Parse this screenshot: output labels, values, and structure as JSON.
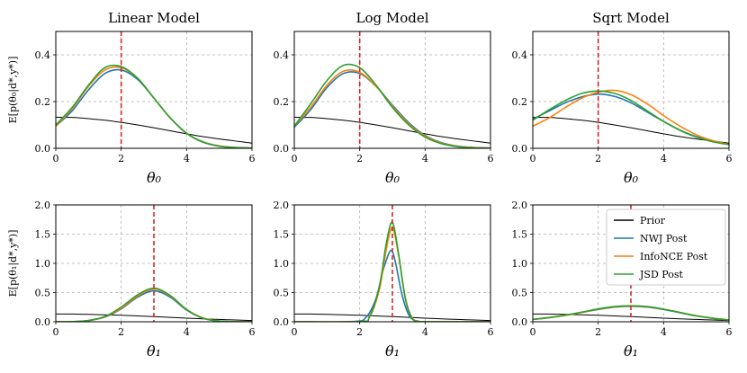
{
  "chart_data": {
    "type": "line",
    "layout": "2x3 grid",
    "grid": true,
    "titles": [
      "Linear Model",
      "Log Model",
      "Sqrt Model"
    ],
    "ylabels": [
      "E[p(θ₀|d*,y*)]",
      "E[p(θ₁|d*,y*)]"
    ],
    "xlabels": [
      "θ₀",
      "θ₁"
    ],
    "xlim": [
      0,
      6
    ],
    "xticks": [
      "0",
      "2",
      "4",
      "6"
    ],
    "colors": {
      "Prior": "#000000",
      "NWJ Post": "#1f77b4",
      "InfoNCE Post": "#ff7f0e",
      "JSD Post": "#2ca02c",
      "true_param": "#d62728"
    },
    "legend": {
      "location": "upper right (bottom-right panel)",
      "entries": [
        "Prior",
        "NWJ Post",
        "InfoNCE Post",
        "JSD Post"
      ]
    },
    "panels": [
      {
        "row": 0,
        "col": 0,
        "model": "Linear Model",
        "param": "θ₀",
        "ylim": [
          0,
          0.5
        ],
        "yticks": [
          "0.0",
          "0.2",
          "0.4"
        ],
        "true_value": 2,
        "series": [
          {
            "name": "Prior",
            "x": [
              0,
              0.5,
              1,
              1.5,
              2,
              2.5,
              3,
              3.5,
              4,
              4.5,
              5,
              5.5,
              6
            ],
            "y": [
              0.133,
              0.132,
              0.127,
              0.12,
              0.111,
              0.1,
              0.088,
              0.075,
              0.062,
              0.05,
              0.04,
              0.031,
              0.022
            ]
          },
          {
            "name": "NWJ Post",
            "x": [
              0,
              0.5,
              1,
              1.5,
              2,
              2.5,
              3,
              3.5,
              4,
              4.5,
              5,
              5.5,
              6
            ],
            "y": [
              0.095,
              0.16,
              0.25,
              0.32,
              0.335,
              0.295,
              0.215,
              0.13,
              0.065,
              0.028,
              0.01,
              0.003,
              0.001
            ]
          },
          {
            "name": "InfoNCE Post",
            "x": [
              0,
              0.5,
              1,
              1.5,
              2,
              2.5,
              3,
              3.5,
              4,
              4.5,
              5,
              5.5,
              6
            ],
            "y": [
              0.095,
              0.17,
              0.265,
              0.335,
              0.345,
              0.3,
              0.215,
              0.13,
              0.064,
              0.027,
              0.01,
              0.003,
              0.001
            ]
          },
          {
            "name": "JSD Post",
            "x": [
              0,
              0.5,
              1,
              1.5,
              2,
              2.5,
              3,
              3.5,
              4,
              4.5,
              5,
              5.5,
              6
            ],
            "y": [
              0.1,
              0.175,
              0.27,
              0.345,
              0.35,
              0.3,
              0.215,
              0.13,
              0.064,
              0.026,
              0.009,
              0.003,
              0.001
            ]
          }
        ]
      },
      {
        "row": 0,
        "col": 1,
        "model": "Log Model",
        "param": "θ₀",
        "ylim": [
          0,
          0.5
        ],
        "yticks": [
          "0.0",
          "0.2",
          "0.4"
        ],
        "true_value": 2,
        "series": [
          {
            "name": "Prior",
            "x": [
              0,
              0.5,
              1,
              1.5,
              2,
              2.5,
              3,
              3.5,
              4,
              4.5,
              5,
              5.5,
              6
            ],
            "y": [
              0.133,
              0.132,
              0.127,
              0.12,
              0.111,
              0.1,
              0.088,
              0.075,
              0.062,
              0.05,
              0.04,
              0.031,
              0.022
            ]
          },
          {
            "name": "NWJ Post",
            "x": [
              0,
              0.5,
              1,
              1.5,
              2,
              2.5,
              3,
              3.5,
              4,
              4.5,
              5,
              5.5,
              6
            ],
            "y": [
              0.09,
              0.165,
              0.26,
              0.32,
              0.32,
              0.265,
              0.185,
              0.11,
              0.055,
              0.024,
              0.009,
              0.003,
              0.001
            ]
          },
          {
            "name": "InfoNCE Post",
            "x": [
              0,
              0.5,
              1,
              1.5,
              2,
              2.5,
              3,
              3.5,
              4,
              4.5,
              5,
              5.5,
              6
            ],
            "y": [
              0.095,
              0.175,
              0.27,
              0.33,
              0.325,
              0.265,
              0.18,
              0.105,
              0.052,
              0.022,
              0.008,
              0.003,
              0.001
            ]
          },
          {
            "name": "JSD Post",
            "x": [
              0,
              0.5,
              1,
              1.5,
              2,
              2.5,
              3,
              3.5,
              4,
              4.5,
              5,
              5.5,
              6
            ],
            "y": [
              0.095,
              0.19,
              0.29,
              0.355,
              0.345,
              0.27,
              0.175,
              0.1,
              0.048,
              0.02,
              0.007,
              0.002,
              0.001
            ]
          }
        ]
      },
      {
        "row": 0,
        "col": 2,
        "model": "Sqrt Model",
        "param": "θ₀",
        "ylim": [
          0,
          0.5
        ],
        "yticks": [
          "0.0",
          "0.2",
          "0.4"
        ],
        "true_value": 2,
        "series": [
          {
            "name": "Prior",
            "x": [
              0,
              0.5,
              1,
              1.5,
              2,
              2.5,
              3,
              3.5,
              4,
              4.5,
              5,
              5.5,
              6
            ],
            "y": [
              0.133,
              0.132,
              0.127,
              0.12,
              0.111,
              0.1,
              0.088,
              0.075,
              0.062,
              0.05,
              0.04,
              0.031,
              0.022
            ]
          },
          {
            "name": "NWJ Post",
            "x": [
              0,
              0.5,
              1,
              1.5,
              2,
              2.5,
              3,
              3.5,
              4,
              4.5,
              5,
              5.5,
              6
            ],
            "y": [
              0.125,
              0.16,
              0.195,
              0.22,
              0.232,
              0.222,
              0.195,
              0.155,
              0.115,
              0.078,
              0.05,
              0.03,
              0.017
            ]
          },
          {
            "name": "InfoNCE Post",
            "x": [
              0,
              0.5,
              1,
              1.5,
              2,
              2.5,
              3,
              3.5,
              4,
              4.5,
              5,
              5.5,
              6
            ],
            "y": [
              0.095,
              0.13,
              0.175,
              0.215,
              0.24,
              0.248,
              0.23,
              0.19,
              0.14,
              0.095,
              0.058,
              0.033,
              0.017
            ]
          },
          {
            "name": "JSD Post",
            "x": [
              0,
              0.5,
              1,
              1.5,
              2,
              2.5,
              3,
              3.5,
              4,
              4.5,
              5,
              5.5,
              6
            ],
            "y": [
              0.12,
              0.165,
              0.205,
              0.235,
              0.245,
              0.235,
              0.205,
              0.16,
              0.115,
              0.077,
              0.048,
              0.028,
              0.016
            ]
          }
        ]
      },
      {
        "row": 1,
        "col": 0,
        "model": "Linear Model",
        "param": "θ₁",
        "ylim": [
          0,
          2.0
        ],
        "yticks": [
          "0.0",
          "0.5",
          "1.0",
          "1.5",
          "2.0"
        ],
        "true_value": 3,
        "series": [
          {
            "name": "Prior",
            "x": [
              0,
              0.5,
              1,
              1.5,
              2,
              2.5,
              3,
              3.5,
              4,
              4.5,
              5,
              5.5,
              6
            ],
            "y": [
              0.133,
              0.132,
              0.127,
              0.12,
              0.111,
              0.1,
              0.088,
              0.075,
              0.062,
              0.05,
              0.04,
              0.031,
              0.022
            ]
          },
          {
            "name": "NWJ Post",
            "x": [
              0,
              0.5,
              1,
              1.5,
              2,
              2.5,
              3,
              3.5,
              4,
              4.5,
              5,
              5.5,
              6
            ],
            "y": [
              0,
              0.002,
              0.02,
              0.08,
              0.22,
              0.42,
              0.53,
              0.42,
              0.2,
              0.06,
              0.012,
              0.002,
              0
            ]
          },
          {
            "name": "InfoNCE Post",
            "x": [
              0,
              0.5,
              1,
              1.5,
              2,
              2.5,
              3,
              3.5,
              4,
              4.5,
              5,
              5.5,
              6
            ],
            "y": [
              0,
              0.002,
              0.02,
              0.085,
              0.23,
              0.44,
              0.56,
              0.44,
              0.21,
              0.065,
              0.013,
              0.002,
              0
            ]
          },
          {
            "name": "JSD Post",
            "x": [
              0,
              0.5,
              1,
              1.5,
              2,
              2.5,
              3,
              3.5,
              4,
              4.5,
              5,
              5.5,
              6
            ],
            "y": [
              0,
              0.002,
              0.022,
              0.09,
              0.25,
              0.46,
              0.575,
              0.45,
              0.21,
              0.062,
              0.012,
              0.002,
              0
            ]
          }
        ]
      },
      {
        "row": 1,
        "col": 1,
        "model": "Log Model",
        "param": "θ₁",
        "ylim": [
          0,
          2.0
        ],
        "yticks": [
          "0.0",
          "0.5",
          "1.0",
          "1.5",
          "2.0"
        ],
        "true_value": 3,
        "series": [
          {
            "name": "Prior",
            "x": [
              0,
              0.5,
              1,
              1.5,
              2,
              2.5,
              3,
              3.5,
              4,
              4.5,
              5,
              5.5,
              6
            ],
            "y": [
              0.133,
              0.132,
              0.127,
              0.12,
              0.111,
              0.1,
              0.088,
              0.075,
              0.062,
              0.05,
              0.04,
              0.031,
              0.022
            ]
          },
          {
            "name": "NWJ Post",
            "x": [
              0,
              1.8,
              2.2,
              2.5,
              2.7,
              2.9,
              3.0,
              3.1,
              3.3,
              3.5,
              3.7,
              4.0,
              6
            ],
            "y": [
              0,
              0.005,
              0.08,
              0.4,
              0.85,
              1.18,
              1.2,
              1.0,
              0.45,
              0.12,
              0.02,
              0,
              0
            ]
          },
          {
            "name": "InfoNCE Post",
            "x": [
              0,
              2.0,
              2.3,
              2.6,
              2.8,
              2.95,
              3.05,
              3.2,
              3.4,
              3.6,
              3.8,
              4.0,
              6
            ],
            "y": [
              0,
              0.005,
              0.08,
              0.55,
              1.2,
              1.58,
              1.55,
              1.1,
              0.4,
              0.07,
              0.01,
              0,
              0
            ]
          },
          {
            "name": "JSD Post",
            "x": [
              0,
              2.0,
              2.3,
              2.6,
              2.8,
              2.95,
              3.05,
              3.2,
              3.4,
              3.6,
              3.8,
              4.0,
              6
            ],
            "y": [
              0,
              0.005,
              0.09,
              0.6,
              1.3,
              1.68,
              1.62,
              1.12,
              0.38,
              0.06,
              0.008,
              0,
              0
            ]
          }
        ]
      },
      {
        "row": 1,
        "col": 2,
        "model": "Sqrt Model",
        "param": "θ₁",
        "ylim": [
          0,
          2.0
        ],
        "yticks": [
          "0.0",
          "0.5",
          "1.0",
          "1.5",
          "2.0"
        ],
        "true_value": 3,
        "series": [
          {
            "name": "Prior",
            "x": [
              0,
              0.5,
              1,
              1.5,
              2,
              2.5,
              3,
              3.5,
              4,
              4.5,
              5,
              5.5,
              6
            ],
            "y": [
              0.133,
              0.132,
              0.127,
              0.12,
              0.111,
              0.1,
              0.088,
              0.075,
              0.062,
              0.05,
              0.04,
              0.031,
              0.022
            ]
          },
          {
            "name": "NWJ Post",
            "x": [
              0,
              0.5,
              1,
              1.5,
              2,
              2.5,
              3,
              3.5,
              4,
              4.5,
              5,
              5.5,
              6
            ],
            "y": [
              0.04,
              0.07,
              0.11,
              0.16,
              0.21,
              0.25,
              0.265,
              0.25,
              0.21,
              0.155,
              0.1,
              0.06,
              0.03
            ]
          },
          {
            "name": "InfoNCE Post",
            "x": [
              0,
              0.5,
              1,
              1.5,
              2,
              2.5,
              3,
              3.5,
              4,
              4.5,
              5,
              5.5,
              6
            ],
            "y": [
              0.04,
              0.07,
              0.11,
              0.16,
              0.215,
              0.255,
              0.27,
              0.255,
              0.215,
              0.16,
              0.105,
              0.062,
              0.032
            ]
          },
          {
            "name": "JSD Post",
            "x": [
              0,
              0.5,
              1,
              1.5,
              2,
              2.5,
              3,
              3.5,
              4,
              4.5,
              5,
              5.5,
              6
            ],
            "y": [
              0.04,
              0.072,
              0.115,
              0.165,
              0.22,
              0.26,
              0.275,
              0.26,
              0.215,
              0.16,
              0.102,
              0.06,
              0.03
            ]
          }
        ]
      }
    ]
  }
}
